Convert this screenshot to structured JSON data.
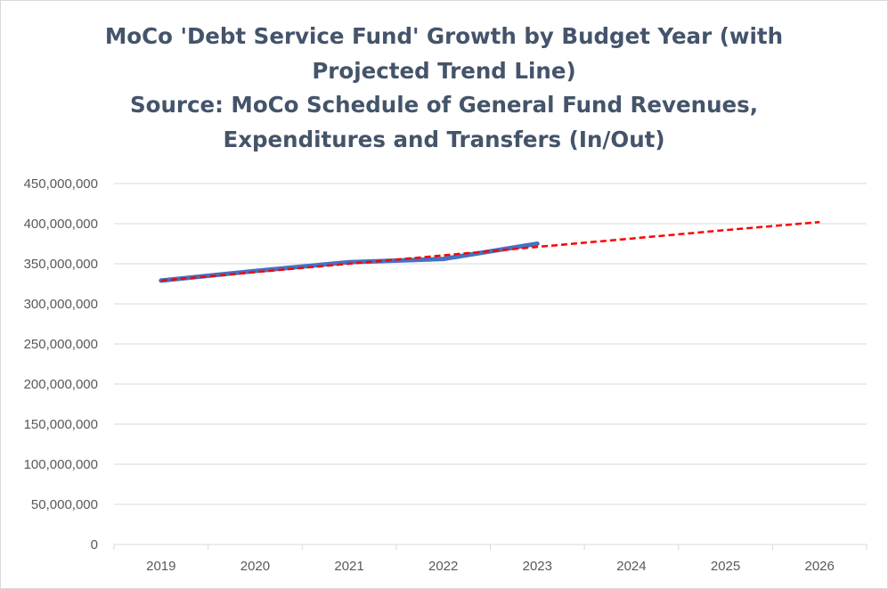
{
  "chart_data": {
    "type": "line",
    "title_lines": [
      "MoCo 'Debt Service Fund' Growth by Budget Year (with",
      "Projected Trend Line)",
      "Source: MoCo Schedule of General Fund Revenues,",
      "Expenditures and Transfers (In/Out)"
    ],
    "categories": [
      "2019",
      "2020",
      "2021",
      "2022",
      "2023",
      "2024",
      "2025",
      "2026"
    ],
    "ylim": [
      0,
      450000000
    ],
    "yticks": [
      0,
      50000000,
      100000000,
      150000000,
      200000000,
      250000000,
      300000000,
      350000000,
      400000000,
      450000000
    ],
    "ytick_labels": [
      "0",
      "50,000,000",
      "100,000,000",
      "150,000,000",
      "200,000,000",
      "250,000,000",
      "300,000,000",
      "350,000,000",
      "400,000,000",
      "450,000,000"
    ],
    "grid": true,
    "legend": "none",
    "series": [
      {
        "style": "solid",
        "color": "#4472c4",
        "values": [
          329000000,
          341000000,
          352000000,
          356000000,
          375000000,
          null,
          null,
          null
        ]
      },
      {
        "style": "dashed",
        "color": "#ff0000",
        "values": [
          329000000,
          339500000,
          350000000,
          360500000,
          371000000,
          381500000,
          392000000,
          402000000
        ]
      }
    ]
  }
}
